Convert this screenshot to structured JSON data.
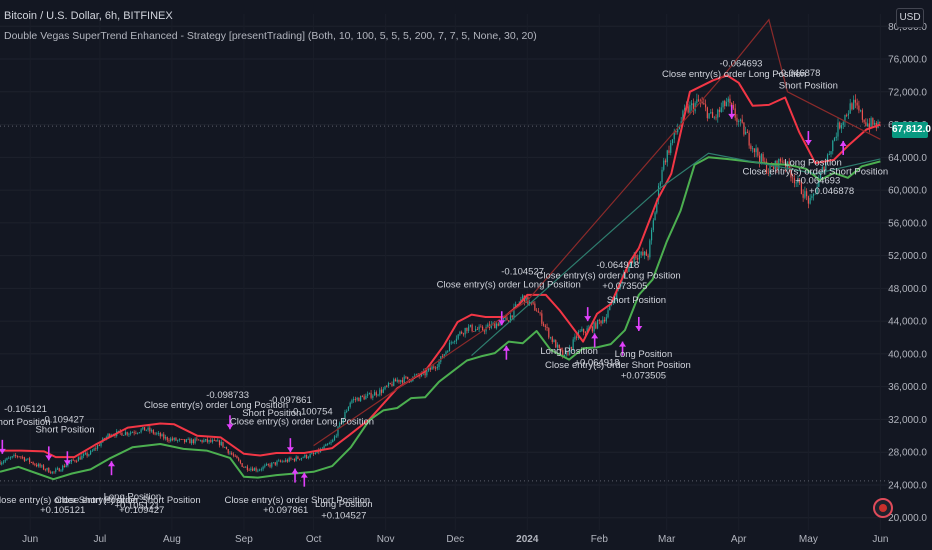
{
  "header": {
    "title": "Bitcoin / U.S. Dollar, 6h, BITFINEX",
    "indicator": "Double Vegas SuperTrend Enhanced - Strategy [presentTrading] (Both, 10, 100, 5, 5, 5, 200, 7, 7, 5, None, 30, 20)"
  },
  "currency_button": "USD",
  "last_price": "67,812.0",
  "colors": {
    "background": "#131722",
    "candle_up": "#26a69a",
    "candle_down": "#ef5350",
    "bear_trend": "#f23645",
    "bull_trend": "#4caf50",
    "last_price_badge": "#089981",
    "trade_marker": "#e040fb"
  },
  "chart_data": {
    "type": "line",
    "title": "Bitcoin / U.S. Dollar, 6h, BITFINEX",
    "y_axis": {
      "ticks": [
        "20,000.0",
        "24,000.0",
        "28,000.0",
        "32,000.0",
        "36,000.0",
        "40,000.0",
        "44,000.0",
        "48,000.0",
        "52,000.0",
        "56,000.0",
        "60,000.0",
        "64,000.0",
        "68,000.0",
        "72,000.0",
        "76,000.0",
        "80,000.0"
      ],
      "range": [
        18500,
        81500
      ]
    },
    "x_axis": {
      "ticks": [
        "Jun",
        "Jul",
        "Aug",
        "Sep",
        "Oct",
        "Nov",
        "Dec",
        "2024",
        "Feb",
        "Mar",
        "Apr",
        "May",
        "Jun"
      ],
      "tick_days": [
        0,
        30,
        61,
        92,
        122,
        153,
        183,
        214,
        245,
        274,
        305,
        335,
        366
      ],
      "range_days": [
        -13,
        371
      ]
    },
    "reference_lines": [
      24500,
      67812
    ],
    "series": [
      {
        "x": [
          -13,
          -5,
          3,
          10,
          18,
          26,
          34,
          42,
          50,
          58,
          66,
          74,
          82,
          92,
          98,
          106,
          114,
          122,
          130,
          138,
          146,
          152,
          158,
          164,
          170,
          176,
          182,
          188,
          194,
          200,
          206,
          212,
          218,
          224,
          230,
          236,
          242,
          248,
          254,
          260,
          266,
          272,
          276,
          282,
          288,
          294,
          300,
          306,
          312,
          318,
          324,
          330,
          336,
          342,
          348,
          354,
          360,
          366
        ],
        "values": [
          26800,
          27600,
          26400,
          25500,
          26900,
          27900,
          30200,
          30400,
          30800,
          29700,
          29300,
          29400,
          29100,
          26200,
          25900,
          26700,
          27200,
          27700,
          29200,
          34300,
          34900,
          35600,
          36800,
          37000,
          37600,
          39000,
          41800,
          43200,
          42900,
          43600,
          44300,
          46900,
          45400,
          42000,
          39500,
          42500,
          43200,
          44600,
          48800,
          52000,
          52100,
          62800,
          65800,
          69600,
          70800,
          68600,
          70800,
          67800,
          64900,
          62300,
          63800,
          60900,
          58300,
          63200,
          67800,
          70600,
          68200,
          67800
        ]
      },
      {
        "name": "",
        "x": [
          -13,
          -4,
          6,
          11,
          19,
          28,
          42,
          56,
          62,
          72,
          82,
          92,
          99,
          106,
          118,
          130,
          137,
          146,
          158,
          170,
          178,
          184,
          190,
          196,
          204,
          210,
          214,
          222,
          228,
          232,
          238,
          244,
          250,
          258,
          262,
          270,
          276,
          284,
          294,
          300,
          305,
          311,
          318,
          325,
          331,
          338,
          346,
          352,
          360,
          366
        ],
        "values": [
          28200,
          28200,
          28100,
          27400,
          27400,
          28900,
          31000,
          31500,
          31400,
          30000,
          29800,
          27800,
          27600,
          27900,
          27900,
          28500,
          30000,
          32000,
          35800,
          37900,
          41000,
          43900,
          44800,
          44500,
          44500,
          45900,
          47200,
          47200,
          45300,
          43800,
          41500,
          44900,
          46100,
          51200,
          52900,
          58800,
          62000,
          72000,
          73400,
          74000,
          73100,
          70300,
          70400,
          71300,
          67100,
          63300,
          63700,
          65400,
          67400,
          68000
        ]
      },
      {
        "name": "",
        "x": [
          -13,
          -5,
          3,
          10,
          18,
          26,
          34,
          44,
          56,
          66,
          76,
          86,
          92,
          98,
          106,
          114,
          122,
          130,
          138,
          146,
          152,
          158,
          164,
          170,
          176,
          182,
          188,
          194,
          200,
          206,
          212,
          218,
          224,
          232,
          238,
          244,
          250,
          256,
          262,
          268,
          274,
          280,
          286,
          292,
          300,
          306,
          312,
          318,
          326,
          334,
          340,
          346,
          352,
          358,
          366
        ],
        "values": [
          25600,
          26200,
          25400,
          24700,
          25400,
          25900,
          27200,
          28600,
          29000,
          28400,
          28200,
          27300,
          25000,
          24900,
          25200,
          25400,
          25600,
          26300,
          28600,
          31900,
          33100,
          33400,
          34600,
          34700,
          36600,
          37900,
          39200,
          39700,
          40100,
          41500,
          41300,
          42800,
          40500,
          39300,
          40700,
          40800,
          41200,
          42900,
          47200,
          49100,
          53700,
          57500,
          63100,
          64000,
          63800,
          63600,
          63400,
          63200,
          63100,
          62600,
          61200,
          62100,
          61500,
          62900,
          63500
        ]
      }
    ],
    "trade_labels": [
      {
        "text": "-0.105121",
        "x": -2,
        "y": 32900
      },
      {
        "text": "Short Position",
        "x": -4,
        "y": 31300
      },
      {
        "text": "-0.109427",
        "x": 14,
        "y": 31600
      },
      {
        "text": "Short Position",
        "x": 15,
        "y": 30400
      },
      {
        "text": "Close entry(s) order Short Position",
        "x": 15,
        "y": 21800
      },
      {
        "text": "+0.105121",
        "x": 14,
        "y": 20600
      },
      {
        "text": "Long Position",
        "x": 44,
        "y": 22200
      },
      {
        "text": "Close entry(s) order Short Position",
        "x": 42,
        "y": 21800
      },
      {
        "text": "+0.105121",
        "x": 46,
        "y": 21100
      },
      {
        "text": "+0.109427",
        "x": 48,
        "y": 20600
      },
      {
        "text": "-0.098733",
        "x": 85,
        "y": 34600
      },
      {
        "text": "Close entry(s) order Long Position",
        "x": 80,
        "y": 33400
      },
      {
        "text": "-0.097861",
        "x": 112,
        "y": 34000
      },
      {
        "text": "Short Position",
        "x": 104,
        "y": 32400
      },
      {
        "text": "-0.100754",
        "x": 121,
        "y": 32600
      },
      {
        "text": "Close entry(s) order Long Position",
        "x": 117,
        "y": 31400
      },
      {
        "text": "Close entry(s) order Short Position",
        "x": 115,
        "y": 21800
      },
      {
        "text": "+0.097861",
        "x": 110,
        "y": 20600
      },
      {
        "text": "+0.104527",
        "x": 135,
        "y": 19900
      },
      {
        "text": "Long Position",
        "x": 135,
        "y": 21300
      },
      {
        "text": "-0.104527",
        "x": 212,
        "y": 49700
      },
      {
        "text": "Close entry(s) order Long Position",
        "x": 206,
        "y": 48100
      },
      {
        "text": "-0.064918",
        "x": 253,
        "y": 50500
      },
      {
        "text": "Close entry(s) order Long Position",
        "x": 249,
        "y": 49200
      },
      {
        "text": "+0.073505",
        "x": 256,
        "y": 47900
      },
      {
        "text": "Short Position",
        "x": 261,
        "y": 46200
      },
      {
        "text": "Long Position",
        "x": 232,
        "y": 40000
      },
      {
        "text": "+0.064918",
        "x": 244,
        "y": 38600
      },
      {
        "text": "Long Position",
        "x": 264,
        "y": 39600
      },
      {
        "text": "Close entry(s) order Short Position",
        "x": 253,
        "y": 38300
      },
      {
        "text": "+0.073505",
        "x": 264,
        "y": 37000
      },
      {
        "text": "-0.064693",
        "x": 306,
        "y": 75100
      },
      {
        "text": "Close entry(s) order Long Position",
        "x": 303,
        "y": 73800
      },
      {
        "text": "-0.046878",
        "x": 331,
        "y": 73900
      },
      {
        "text": "Short Position",
        "x": 335,
        "y": 72400
      },
      {
        "text": "Long Position",
        "x": 337,
        "y": 63000
      },
      {
        "text": "Close entry(s) order Short Position",
        "x": 338,
        "y": 61900
      },
      {
        "text": "+0.064693",
        "x": 339,
        "y": 60800
      },
      {
        "text": "+0.046878",
        "x": 345,
        "y": 59500
      }
    ],
    "trade_markers": [
      {
        "x": -12,
        "y": 27800,
        "dir": "down"
      },
      {
        "x": 8,
        "y": 27000,
        "dir": "down"
      },
      {
        "x": 16,
        "y": 26400,
        "dir": "down"
      },
      {
        "x": 35,
        "y": 26900,
        "dir": "up"
      },
      {
        "x": 86,
        "y": 30800,
        "dir": "down"
      },
      {
        "x": 112,
        "y": 28000,
        "dir": "down"
      },
      {
        "x": 114,
        "y": 26000,
        "dir": "up"
      },
      {
        "x": 118,
        "y": 25500,
        "dir": "up"
      },
      {
        "x": 203,
        "y": 43500,
        "dir": "down"
      },
      {
        "x": 205,
        "y": 41000,
        "dir": "up"
      },
      {
        "x": 240,
        "y": 44000,
        "dir": "down"
      },
      {
        "x": 243,
        "y": 42500,
        "dir": "up"
      },
      {
        "x": 255,
        "y": 41500,
        "dir": "up"
      },
      {
        "x": 262,
        "y": 42800,
        "dir": "down"
      },
      {
        "x": 302,
        "y": 68700,
        "dir": "down"
      },
      {
        "x": 335,
        "y": 65500,
        "dir": "down"
      },
      {
        "x": 350,
        "y": 66000,
        "dir": "up"
      }
    ]
  }
}
